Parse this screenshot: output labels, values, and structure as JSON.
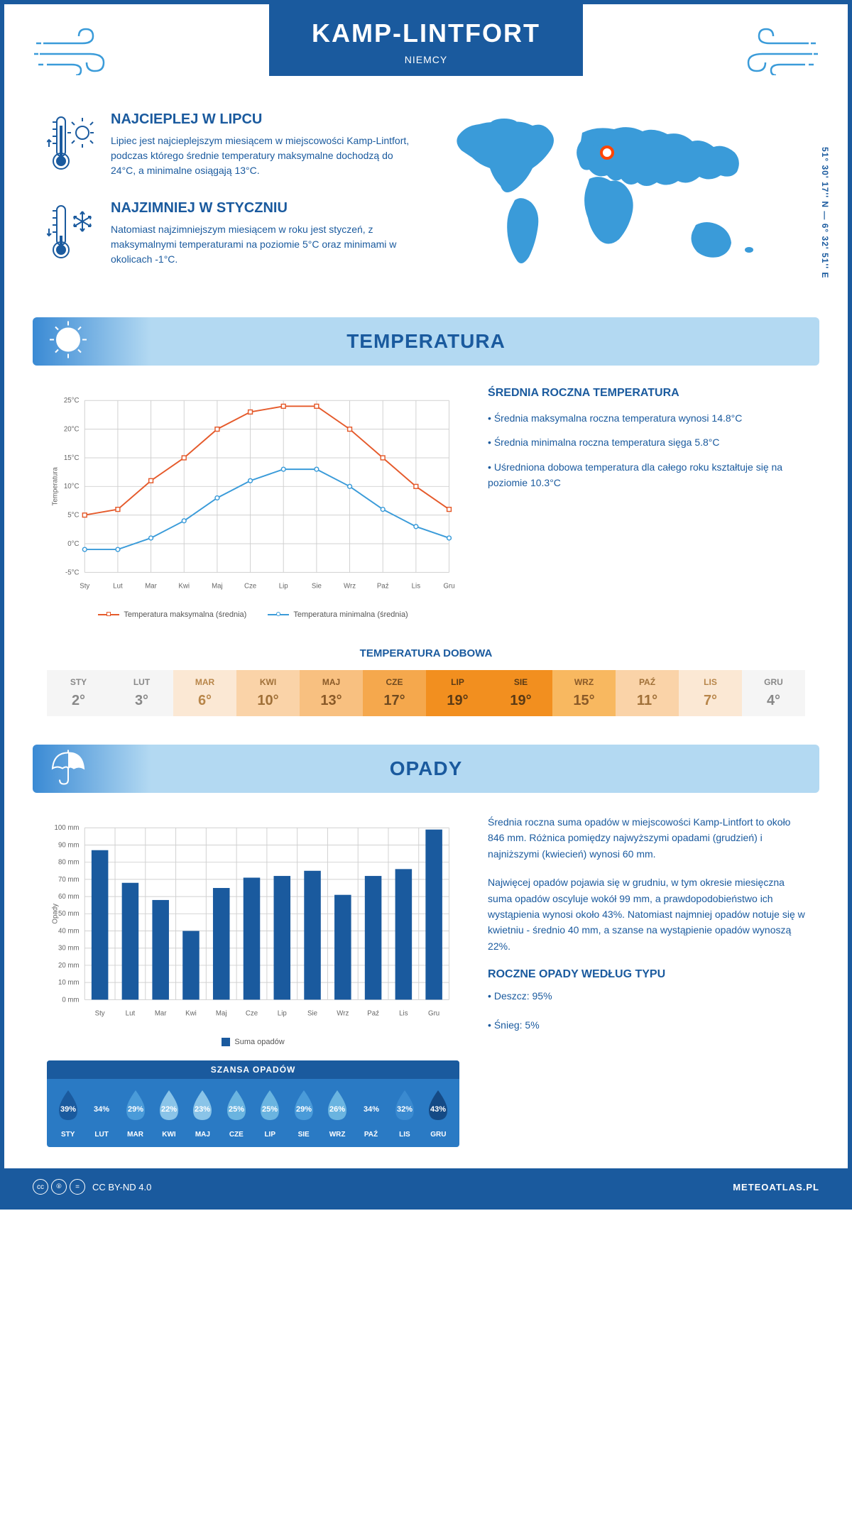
{
  "header": {
    "title": "KAMP-LINTFORT",
    "subtitle": "NIEMCY"
  },
  "coords": "51° 30' 17'' N — 6° 32' 51'' E",
  "facts": {
    "warm": {
      "title": "NAJCIEPLEJ W LIPCU",
      "text": "Lipiec jest najcieplejszym miesiącem w miejscowości Kamp-Lintfort, podczas którego średnie temperatury maksymalne dochodzą do 24°C, a minimalne osiągają 13°C."
    },
    "cold": {
      "title": "NAJZIMNIEJ W STYCZNIU",
      "text": "Natomiast najzimniejszym miesiącem w roku jest styczeń, z maksymalnymi temperaturami na poziomie 5°C oraz minimami w okolicach -1°C."
    }
  },
  "map": {
    "marker_color": "#ff4500",
    "land_color": "#3a9bd9"
  },
  "temp_section": {
    "header": "TEMPERATURA",
    "chart": {
      "type": "line",
      "months": [
        "Sty",
        "Lut",
        "Mar",
        "Kwi",
        "Maj",
        "Cze",
        "Lip",
        "Sie",
        "Wrz",
        "Paź",
        "Lis",
        "Gru"
      ],
      "max_values": [
        5,
        6,
        11,
        15,
        20,
        23,
        24,
        24,
        20,
        15,
        10,
        6
      ],
      "min_values": [
        -1,
        -1,
        1,
        4,
        8,
        11,
        13,
        13,
        10,
        6,
        3,
        1
      ],
      "max_color": "#e55a2b",
      "min_color": "#3a9bd9",
      "ylabel": "Temperatura",
      "ylim": [
        -5,
        25
      ],
      "ytick_step": 5,
      "ytick_suffix": "°C",
      "grid_color": "#d0d0d0",
      "legend_max": "Temperatura maksymalna (średnia)",
      "legend_min": "Temperatura minimalna (średnia)",
      "label_fontsize": 10
    },
    "info_title": "ŚREDNIA ROCZNA TEMPERATURA",
    "info_1": "• Średnia maksymalna roczna temperatura wynosi 14.8°C",
    "info_2": "• Średnia minimalna roczna temperatura sięga 5.8°C",
    "info_3": "• Uśredniona dobowa temperatura dla całego roku kształtuje się na poziomie 10.3°C"
  },
  "daily_temp": {
    "title": "TEMPERATURA DOBOWA",
    "months": [
      "STY",
      "LUT",
      "MAR",
      "KWI",
      "MAJ",
      "CZE",
      "LIP",
      "SIE",
      "WRZ",
      "PAŹ",
      "LIS",
      "GRU"
    ],
    "values": [
      "2°",
      "3°",
      "6°",
      "10°",
      "13°",
      "17°",
      "19°",
      "19°",
      "15°",
      "11°",
      "7°",
      "4°"
    ],
    "bg_colors": [
      "#f5f5f5",
      "#f5f5f5",
      "#fbe8d4",
      "#fad3a8",
      "#f8c080",
      "#f5a84d",
      "#f28f1f",
      "#f28f1f",
      "#f8b860",
      "#fad3a8",
      "#fbe8d4",
      "#f5f5f5"
    ],
    "text_colors": [
      "#888",
      "#888",
      "#b8864a",
      "#a07038",
      "#8a5a28",
      "#6f4a20",
      "#5a3a15",
      "#5a3a15",
      "#8a5a28",
      "#a07038",
      "#b8864a",
      "#888"
    ]
  },
  "precip_section": {
    "header": "OPADY",
    "chart": {
      "type": "bar",
      "months": [
        "Sty",
        "Lut",
        "Mar",
        "Kwi",
        "Maj",
        "Cze",
        "Lip",
        "Sie",
        "Wrz",
        "Paź",
        "Lis",
        "Gru"
      ],
      "values": [
        87,
        68,
        58,
        40,
        65,
        71,
        72,
        75,
        61,
        72,
        76,
        99
      ],
      "bar_color": "#1a5a9e",
      "ylabel": "Opady",
      "ylim": [
        0,
        100
      ],
      "ytick_step": 10,
      "ytick_suffix": " mm",
      "grid_color": "#d0d0d0",
      "legend": "Suma opadów",
      "bar_width": 0.55
    },
    "text_1": "Średnia roczna suma opadów w miejscowości Kamp-Lintfort to około 846 mm. Różnica pomiędzy najwyższymi opadami (grudzień) i najniższymi (kwiecień) wynosi 60 mm.",
    "text_2": "Najwięcej opadów pojawia się w grudniu, w tym okresie miesięczna suma opadów oscyluje wokół 99 mm, a prawdopodobieństwo ich wystąpienia wynosi około 43%. Natomiast najmniej opadów notuje się w kwietniu - średnio 40 mm, a szanse na wystąpienie opadów wynoszą 22%.",
    "type_title": "ROCZNE OPADY WEDŁUG TYPU",
    "type_1": "• Deszcz: 95%",
    "type_2": "• Śnieg: 5%"
  },
  "chance": {
    "title": "SZANSA OPADÓW",
    "months": [
      "STY",
      "LUT",
      "MAR",
      "KWI",
      "MAJ",
      "CZE",
      "LIP",
      "SIE",
      "WRZ",
      "PAŹ",
      "LIS",
      "GRU"
    ],
    "values": [
      "39%",
      "34%",
      "29%",
      "22%",
      "23%",
      "25%",
      "25%",
      "29%",
      "26%",
      "34%",
      "32%",
      "43%"
    ],
    "drop_colors": [
      "#1a5a9e",
      "#2a7ac4",
      "#4a9bd9",
      "#8ac4e8",
      "#8ac4e8",
      "#6ab4e0",
      "#6ab4e0",
      "#4a9bd9",
      "#6ab4e0",
      "#2a7ac4",
      "#3a8ad0",
      "#154a85"
    ]
  },
  "footer": {
    "license": "CC BY-ND 4.0",
    "site": "METEOATLAS.PL"
  }
}
